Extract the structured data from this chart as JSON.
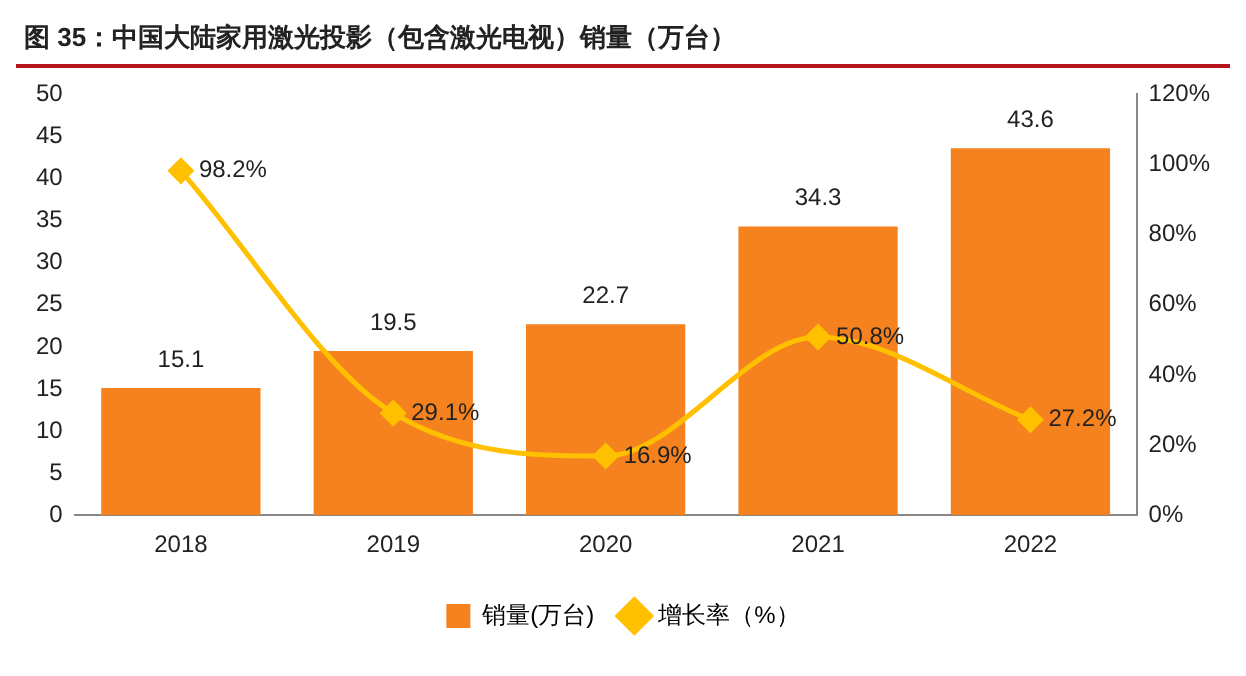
{
  "chart_data": {
    "type": "bar",
    "title": "图 35：中国大陆家用激光投影（包含激光电视）销量（万台）",
    "categories": [
      "2018",
      "2019",
      "2020",
      "2021",
      "2022"
    ],
    "series": [
      {
        "name": "销量(万台)",
        "color": "#f5821f",
        "values": [
          15.1,
          19.5,
          22.7,
          34.3,
          43.6
        ],
        "value_labels": [
          "15.1",
          "19.5",
          "22.7",
          "34.3",
          "43.6"
        ]
      },
      {
        "name": "增长率（%）",
        "type": "line",
        "axis": "y2",
        "color": "#ffc000",
        "marker": "diamond",
        "values": [
          98.2,
          29.1,
          16.9,
          50.8,
          27.2
        ],
        "value_labels": [
          "98.2%",
          "29.1%",
          "16.9%",
          "50.8%",
          "27.2%"
        ]
      }
    ],
    "ylim": [
      0,
      50
    ],
    "yticks": [
      0,
      5,
      10,
      15,
      20,
      25,
      30,
      35,
      40,
      45,
      50
    ],
    "y2lim": [
      0,
      120
    ],
    "y2ticks": [
      {
        "value": 0,
        "label": "0%"
      },
      {
        "value": 20,
        "label": "20%"
      },
      {
        "value": 40,
        "label": "40%"
      },
      {
        "value": 60,
        "label": "60%"
      },
      {
        "value": 80,
        "label": "80%"
      },
      {
        "value": 100,
        "label": "100%"
      },
      {
        "value": 120,
        "label": "120%"
      }
    ],
    "legend": "bottom",
    "grid": false
  }
}
